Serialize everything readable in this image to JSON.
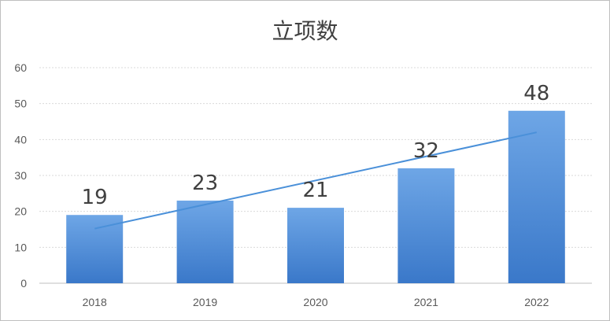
{
  "chart_data": {
    "type": "bar",
    "title": "立项数",
    "categories": [
      "2018",
      "2019",
      "2020",
      "2021",
      "2022"
    ],
    "values": [
      19,
      23,
      21,
      32,
      48
    ],
    "ylim": [
      0,
      60
    ],
    "yticks": [
      0,
      10,
      20,
      30,
      40,
      50,
      60
    ],
    "xlabel": "",
    "ylabel": "",
    "grid": true,
    "trendline": "linear",
    "data_labels": true,
    "legend": "none",
    "colors": {
      "bar_top": "#6ea6e6",
      "bar_bottom": "#3a78c9",
      "trendline": "#4a90d9",
      "grid": "#d9d9d9",
      "axis": "#bfbfbf"
    }
  }
}
